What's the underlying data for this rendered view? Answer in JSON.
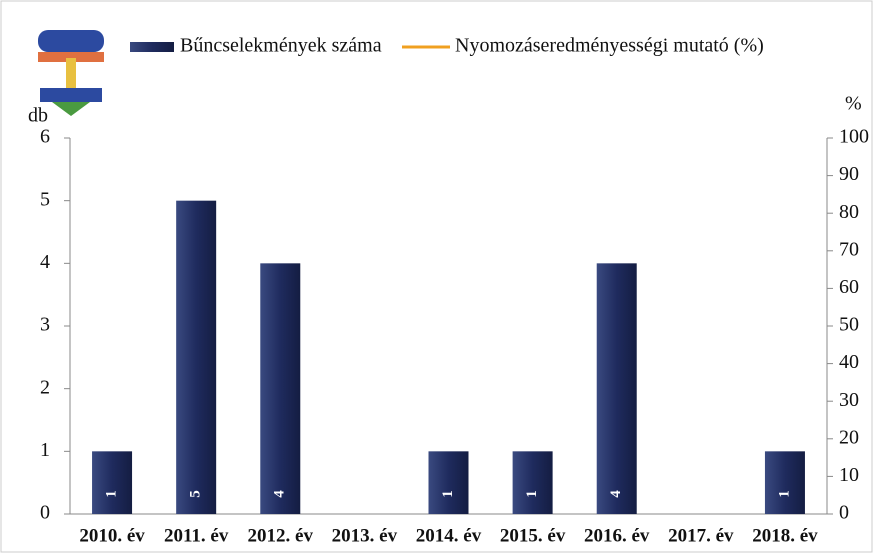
{
  "chart_data": {
    "type": "bar",
    "categories": [
      "2010. év",
      "2011. év",
      "2012. év",
      "2013. év",
      "2014. év",
      "2015. év",
      "2016. év",
      "2017. év",
      "2018. év"
    ],
    "series": [
      {
        "name": "Bűncselekmények száma",
        "color": "#1f2b5e",
        "values": [
          1,
          5,
          4,
          0,
          1,
          1,
          4,
          0,
          1
        ]
      },
      {
        "name": "Nyomozáseredményességi mutató (%)",
        "color": "#f0a020",
        "axis": "y2",
        "values": [
          null,
          null,
          null,
          null,
          null,
          null,
          null,
          null,
          null
        ]
      }
    ],
    "y_label": "db",
    "y2_label": "%",
    "ylim": [
      0,
      6
    ],
    "yticks": [
      0,
      1,
      2,
      3,
      4,
      5,
      6
    ],
    "y2lim": [
      0,
      100
    ],
    "y2ticks": [
      0,
      10,
      20,
      30,
      40,
      50,
      60,
      70,
      80,
      90,
      100
    ]
  }
}
